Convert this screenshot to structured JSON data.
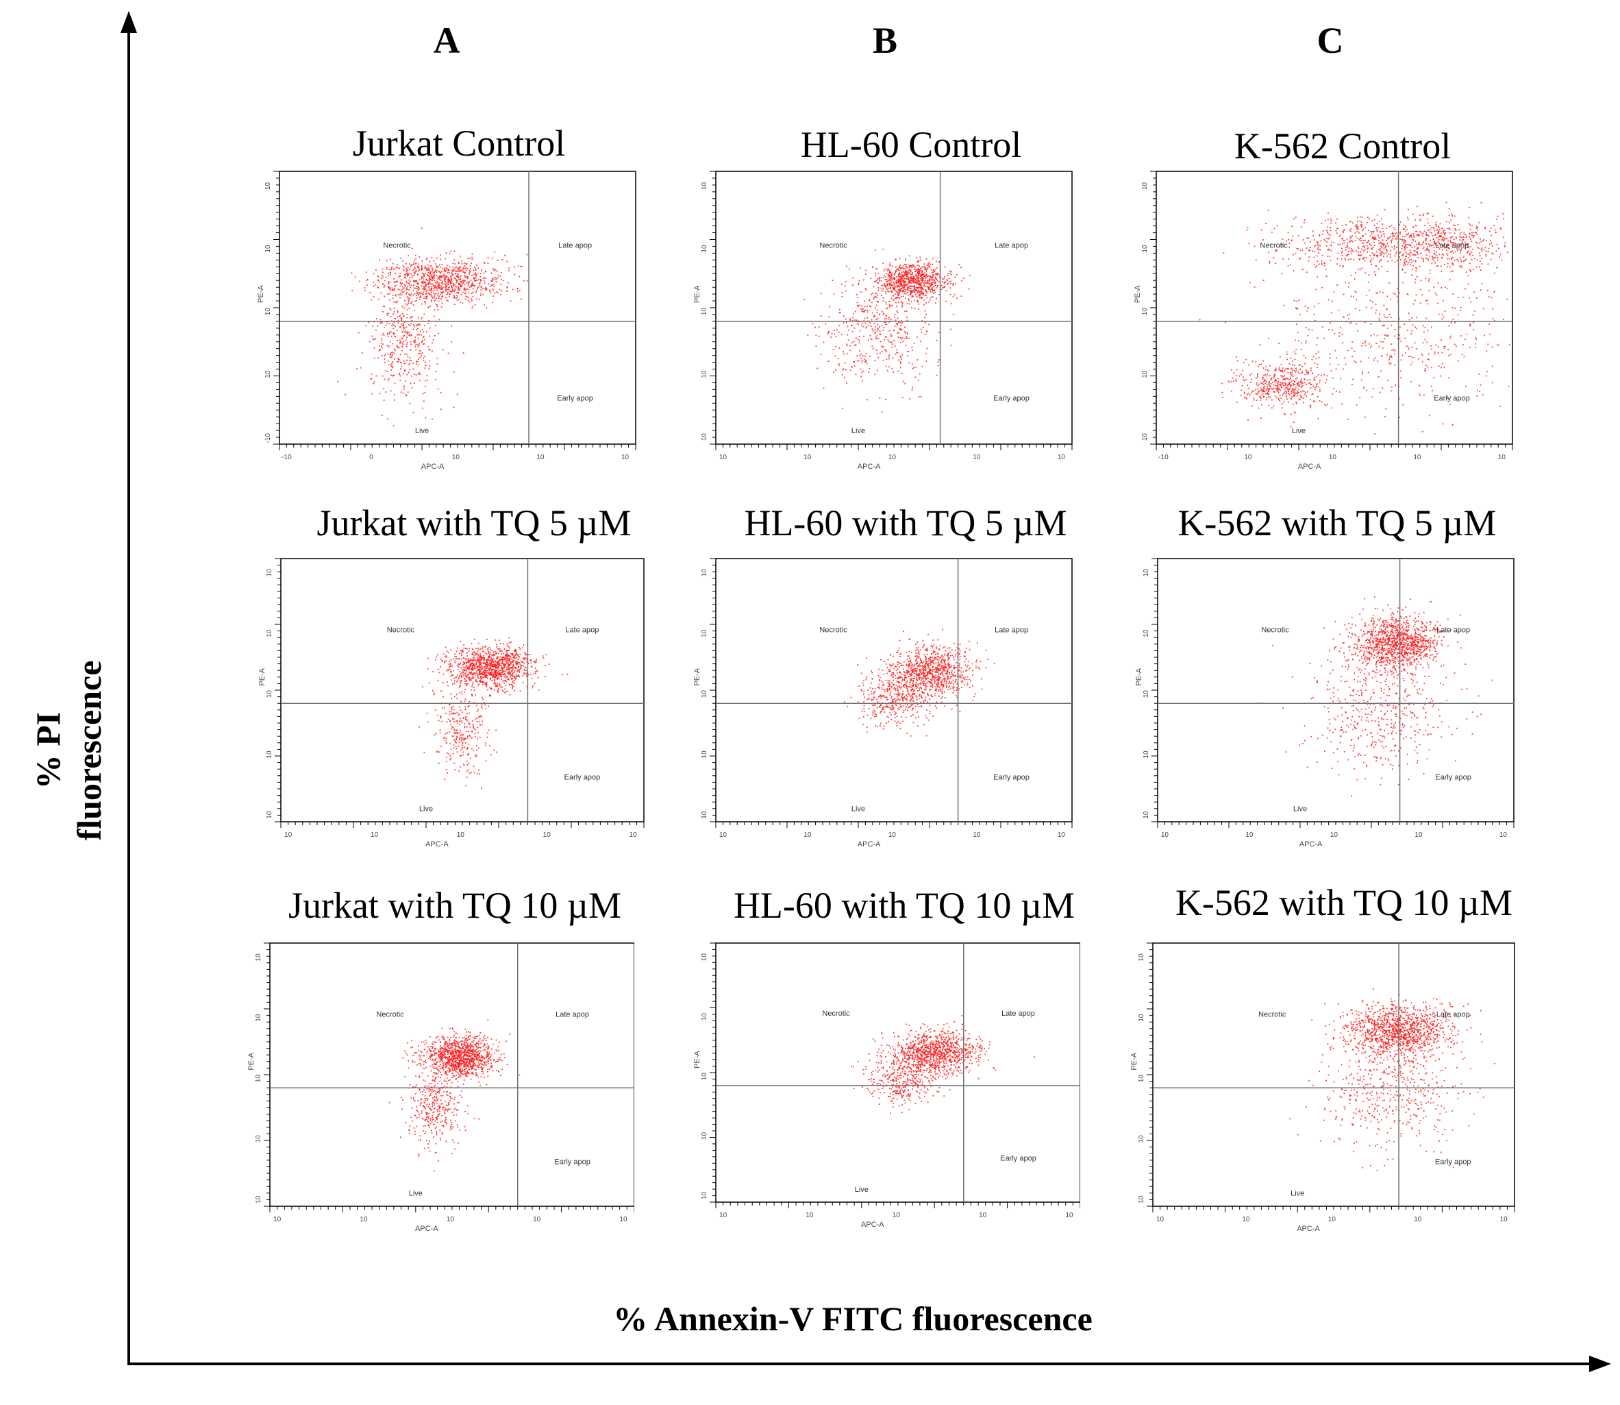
{
  "figure": {
    "y_axis_title_line1": "% PI",
    "y_axis_title_line2": "fluorescence",
    "x_axis_title": "% Annexin-V FITC fluorescence",
    "columns": [
      "A",
      "B",
      "C"
    ]
  },
  "colors": {
    "dots": "#ff1a1a",
    "axes": "#000000",
    "gates": "#707070"
  },
  "chart_data": [
    {
      "type": "scatter",
      "title": "Jurkat Control",
      "xlabel": "APC-A",
      "ylabel": "PE-A",
      "quadrants": {
        "top_left": "Necrotic",
        "top_right": "Late apop",
        "bottom_left": "Live",
        "bottom_right": "Early apop"
      },
      "x_ticks": [
        "-10",
        "0",
        "10",
        "10",
        "10"
      ],
      "y_ticks": [
        "10",
        "10",
        "10",
        "10",
        "-10"
      ],
      "gate_x": 0.7,
      "gate_y": 0.45,
      "populations": [
        {
          "cx": 0.45,
          "cy": 0.6,
          "sx": 0.09,
          "sy": 0.04,
          "n": 900
        },
        {
          "cx": 0.35,
          "cy": 0.38,
          "sx": 0.05,
          "sy": 0.12,
          "n": 450
        }
      ]
    },
    {
      "type": "scatter",
      "title": "HL-60 Control",
      "xlabel": "APC-A",
      "ylabel": "PE-A",
      "quadrants": {
        "top_left": "Necrotic",
        "top_right": "Late apop",
        "bottom_left": "Live",
        "bottom_right": "Early apop"
      },
      "x_ticks": [
        "10",
        "10",
        "10",
        "10",
        "10"
      ],
      "y_ticks": [
        "10",
        "10",
        "10",
        "10",
        "10"
      ],
      "gate_x": 0.63,
      "gate_y": 0.45,
      "populations": [
        {
          "cx": 0.55,
          "cy": 0.6,
          "sx": 0.05,
          "sy": 0.035,
          "n": 800
        },
        {
          "cx": 0.45,
          "cy": 0.42,
          "sx": 0.08,
          "sy": 0.1,
          "n": 450
        }
      ]
    },
    {
      "type": "scatter",
      "title": "K-562 Control",
      "xlabel": "APC-A",
      "ylabel": "PE-A",
      "quadrants": {
        "top_left": "Necrotic",
        "top_right": "Late apop",
        "bottom_left": "Live",
        "bottom_right": "Early apop"
      },
      "x_ticks": [
        "-10",
        "10",
        "10",
        "10",
        "10"
      ],
      "y_ticks": [
        "10",
        "10",
        "10",
        "10",
        "10"
      ],
      "gate_x": 0.68,
      "gate_y": 0.45,
      "populations": [
        {
          "cx": 0.7,
          "cy": 0.74,
          "sx": 0.18,
          "sy": 0.05,
          "n": 1000
        },
        {
          "cx": 0.35,
          "cy": 0.22,
          "sx": 0.06,
          "sy": 0.04,
          "n": 450
        },
        {
          "cx": 0.68,
          "cy": 0.4,
          "sx": 0.18,
          "sy": 0.15,
          "n": 500
        }
      ]
    },
    {
      "type": "scatter",
      "title": "Jurkat with TQ 5 µM",
      "xlabel": "APC-A",
      "ylabel": "PE-A",
      "quadrants": {
        "top_left": "Necrotic",
        "top_right": "Late apop",
        "bottom_left": "Live",
        "bottom_right": "Early apop"
      },
      "x_ticks": [
        "10",
        "10",
        "10",
        "10",
        "10"
      ],
      "y_ticks": [
        "10",
        "10",
        "10",
        "10",
        "10"
      ],
      "gate_x": 0.68,
      "gate_y": 0.45,
      "populations": [
        {
          "cx": 0.58,
          "cy": 0.59,
          "sx": 0.06,
          "sy": 0.04,
          "n": 1100
        },
        {
          "cx": 0.5,
          "cy": 0.35,
          "sx": 0.04,
          "sy": 0.1,
          "n": 300
        }
      ]
    },
    {
      "type": "scatter",
      "title": "HL-60 with TQ 5 µM",
      "xlabel": "APC-A",
      "ylabel": "PE-A",
      "quadrants": {
        "top_left": "Necrotic",
        "top_right": "Late apop",
        "bottom_left": "Live",
        "bottom_right": "Early apop"
      },
      "x_ticks": [
        "10",
        "10",
        "10",
        "10",
        "10"
      ],
      "y_ticks": [
        "10",
        "10",
        "10",
        "10",
        "10"
      ],
      "gate_x": 0.68,
      "gate_y": 0.45,
      "populations": [
        {
          "cx": 0.6,
          "cy": 0.57,
          "sx": 0.06,
          "sy": 0.05,
          "n": 900
        },
        {
          "cx": 0.5,
          "cy": 0.47,
          "sx": 0.05,
          "sy": 0.05,
          "n": 350
        }
      ]
    },
    {
      "type": "scatter",
      "title": "K-562 with TQ 5 µM",
      "xlabel": "APC-A",
      "ylabel": "PE-A",
      "quadrants": {
        "top_left": "Necrotic",
        "top_right": "Late apop",
        "bottom_left": "Live",
        "bottom_right": "Early apop"
      },
      "x_ticks": [
        "10",
        "10",
        "10",
        "10",
        "10"
      ],
      "y_ticks": [
        "10",
        "10",
        "10",
        "10",
        "10"
      ],
      "gate_x": 0.68,
      "gate_y": 0.45,
      "populations": [
        {
          "cx": 0.67,
          "cy": 0.68,
          "sx": 0.06,
          "sy": 0.05,
          "n": 1100
        },
        {
          "cx": 0.62,
          "cy": 0.43,
          "sx": 0.1,
          "sy": 0.12,
          "n": 500
        }
      ]
    },
    {
      "type": "scatter",
      "title": "Jurkat with TQ 10 µM",
      "xlabel": "APC-A",
      "ylabel": "PE-A",
      "quadrants": {
        "top_left": "Necrotic",
        "top_right": "Late apop",
        "bottom_left": "Live",
        "bottom_right": "Early apop"
      },
      "x_ticks": [
        "10",
        "10",
        "10",
        "10",
        "10"
      ],
      "y_ticks": [
        "10",
        "10",
        "10",
        "10",
        "10"
      ],
      "gate_x": 0.68,
      "gate_y": 0.45,
      "populations": [
        {
          "cx": 0.52,
          "cy": 0.57,
          "sx": 0.05,
          "sy": 0.04,
          "n": 1100
        },
        {
          "cx": 0.45,
          "cy": 0.38,
          "sx": 0.04,
          "sy": 0.08,
          "n": 350
        }
      ]
    },
    {
      "type": "scatter",
      "title": "HL-60 with TQ 10 µM",
      "xlabel": "APC-A",
      "ylabel": "PE-A",
      "quadrants": {
        "top_left": "Necrotic",
        "top_right": "Late apop",
        "bottom_left": "Live",
        "bottom_right": "Early apop"
      },
      "x_ticks": [
        "10",
        "10",
        "10",
        "10",
        "10"
      ],
      "y_ticks": [
        "10",
        "10",
        "10",
        "10",
        "10"
      ],
      "gate_x": 0.68,
      "gate_y": 0.45,
      "populations": [
        {
          "cx": 0.6,
          "cy": 0.58,
          "sx": 0.06,
          "sy": 0.04,
          "n": 950
        },
        {
          "cx": 0.51,
          "cy": 0.47,
          "sx": 0.05,
          "sy": 0.05,
          "n": 350
        }
      ]
    },
    {
      "type": "scatter",
      "title": "K-562 with TQ 10 µM",
      "xlabel": "APC-A",
      "ylabel": "PE-A",
      "quadrants": {
        "top_left": "Necrotic",
        "top_right": "Late apop",
        "bottom_left": "Live",
        "bottom_right": "Early apop"
      },
      "x_ticks": [
        "10",
        "10",
        "10",
        "10",
        "10"
      ],
      "y_ticks": [
        "10",
        "10",
        "10",
        "10",
        "10"
      ],
      "gate_x": 0.68,
      "gate_y": 0.45,
      "populations": [
        {
          "cx": 0.68,
          "cy": 0.67,
          "sx": 0.07,
          "sy": 0.05,
          "n": 1100
        },
        {
          "cx": 0.66,
          "cy": 0.45,
          "sx": 0.1,
          "sy": 0.12,
          "n": 500
        }
      ]
    }
  ]
}
